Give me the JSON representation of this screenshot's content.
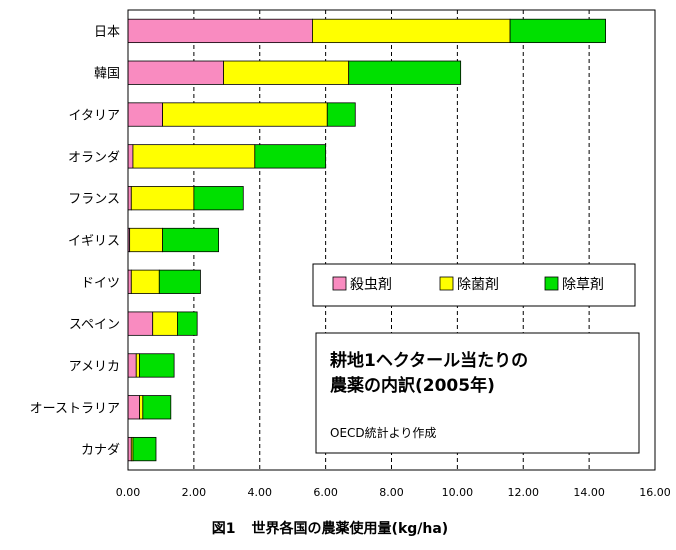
{
  "chart_data": {
    "type": "bar",
    "orientation": "horizontal",
    "stacked": true,
    "categories": [
      "日本",
      "韓国",
      "イタリア",
      "オランダ",
      "フランス",
      "イギリス",
      "ドイツ",
      "スペイン",
      "アメリカ",
      "オーストラリア",
      "カナダ"
    ],
    "series": [
      {
        "name": "殺虫剤",
        "color": "#f98bc0",
        "values": [
          5.6,
          2.9,
          1.05,
          0.15,
          0.1,
          0.05,
          0.1,
          0.75,
          0.25,
          0.35,
          0.1
        ]
      },
      {
        "name": "除菌剤",
        "color": "#ffff00",
        "values": [
          6.0,
          3.8,
          5.0,
          3.7,
          1.9,
          1.0,
          0.85,
          0.75,
          0.1,
          0.1,
          0.05
        ]
      },
      {
        "name": "除草剤",
        "color": "#00e000",
        "values": [
          2.9,
          3.4,
          0.85,
          2.15,
          1.5,
          1.7,
          1.25,
          0.6,
          1.05,
          0.85,
          0.7
        ]
      }
    ],
    "xlim": [
      0,
      16
    ],
    "xticks": [
      "0.00",
      "2.00",
      "4.00",
      "6.00",
      "8.00",
      "10.00",
      "12.00",
      "14.00",
      "16.00"
    ],
    "grid": "vertical-dashed",
    "legend_position": "right-middle",
    "annotation": {
      "line1": "耕地1ヘクタール当たりの",
      "line2": "農薬の内訳(2005年)",
      "source": "OECD統計より作成"
    }
  },
  "caption": {
    "figure_no": "図1",
    "title": "世界各国の農薬使用量(kg/ha)"
  }
}
